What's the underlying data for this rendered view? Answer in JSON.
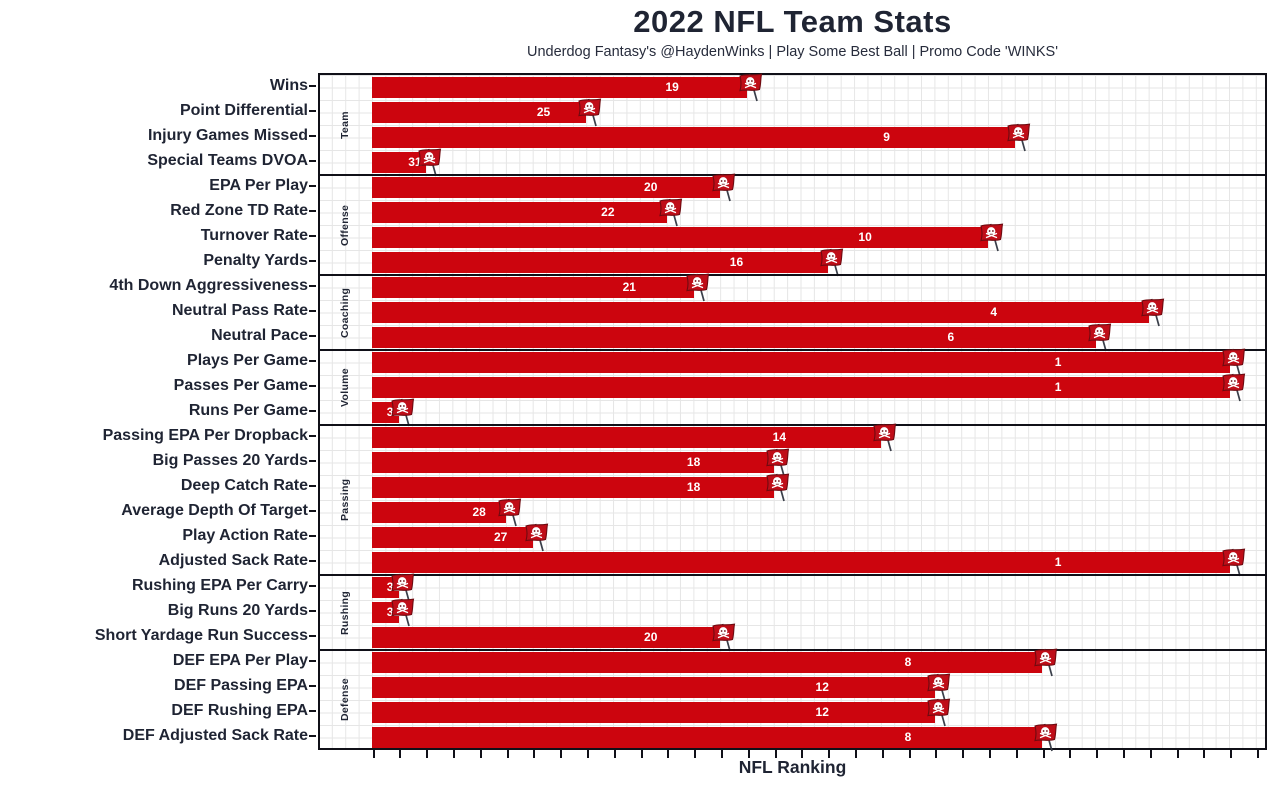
{
  "header": {
    "title": "2022 NFL Team Stats",
    "subtitle": "Underdog Fantasy's @HaydenWinks | Play Some Best Ball | Promo Code 'WINKS'"
  },
  "colors": {
    "bar_red": "#cc050e",
    "flag_fill": "#bf0d18",
    "flag_outline": "#6e0a10",
    "flag_skull": "#ffffff",
    "pole_gray": "#3a3f4a",
    "axis_ink": "#101018",
    "text_ink": "#1f2433",
    "bar_value_text": "#ffffff",
    "grid": "#e6e6e6"
  },
  "chart_data": {
    "type": "bar",
    "orientation": "horizontal",
    "title": "2022 NFL Team Stats",
    "subtitle": "Underdog Fantasy's @HaydenWinks | Play Some Best Ball | Promo Code 'WINKS'",
    "xlabel": "NFL Ranking",
    "ylabel": "",
    "value_semantics": "NFL rank out of 32; bar length = 33 - rank (rank 1 = longest bar)",
    "xlim_units": [
      0,
      33.5
    ],
    "grid": true,
    "legend": "none",
    "bar_end_marker": "tampa-bay-buccaneers-flag",
    "groups": [
      {
        "label": "Team",
        "stats": [
          {
            "label": "Wins",
            "rank": 19
          },
          {
            "label": "Point Differential",
            "rank": 25
          },
          {
            "label": "Injury Games Missed",
            "rank": 9
          },
          {
            "label": "Special Teams DVOA",
            "rank": 31
          }
        ]
      },
      {
        "label": "Offense",
        "stats": [
          {
            "label": "EPA Per Play",
            "rank": 20
          },
          {
            "label": "Red Zone TD Rate",
            "rank": 22
          },
          {
            "label": "Turnover Rate",
            "rank": 10
          },
          {
            "label": "Penalty Yards",
            "rank": 16
          }
        ]
      },
      {
        "label": "Coaching",
        "stats": [
          {
            "label": "4th Down Aggressiveness",
            "rank": 21
          },
          {
            "label": "Neutral Pass Rate",
            "rank": 4
          },
          {
            "label": "Neutral Pace",
            "rank": 6
          }
        ]
      },
      {
        "label": "Volume",
        "stats": [
          {
            "label": "Plays Per Game",
            "rank": 1
          },
          {
            "label": "Passes Per Game",
            "rank": 1
          },
          {
            "label": "Runs Per Game",
            "rank": 32
          }
        ]
      },
      {
        "label": "Passing",
        "stats": [
          {
            "label": "Passing EPA Per Dropback",
            "rank": 14
          },
          {
            "label": "Big Passes 20 Yards",
            "rank": 18
          },
          {
            "label": "Deep Catch Rate",
            "rank": 18
          },
          {
            "label": "Average Depth Of Target",
            "rank": 28
          },
          {
            "label": "Play Action Rate",
            "rank": 27
          },
          {
            "label": "Adjusted Sack Rate",
            "rank": 1
          }
        ]
      },
      {
        "label": "Rushing",
        "stats": [
          {
            "label": "Rushing EPA Per Carry",
            "rank": 32
          },
          {
            "label": "Big Runs 20 Yards",
            "rank": 32
          },
          {
            "label": "Short Yardage Run Success",
            "rank": 20
          }
        ]
      },
      {
        "label": "Defense",
        "stats": [
          {
            "label": "DEF EPA Per Play",
            "rank": 8
          },
          {
            "label": "DEF Passing EPA",
            "rank": 12
          },
          {
            "label": "DEF Rushing EPA",
            "rank": 12
          },
          {
            "label": "DEF Adjusted Sack Rate",
            "rank": 8
          }
        ]
      }
    ],
    "categories": [
      "Wins",
      "Point Differential",
      "Injury Games Missed",
      "Special Teams DVOA",
      "EPA Per Play",
      "Red Zone TD Rate",
      "Turnover Rate",
      "Penalty Yards",
      "4th Down Aggressiveness",
      "Neutral Pass Rate",
      "Neutral Pace",
      "Plays Per Game",
      "Passes Per Game",
      "Runs Per Game",
      "Passing EPA Per Dropback",
      "Big Passes 20 Yards",
      "Deep Catch Rate",
      "Average Depth Of Target",
      "Play Action Rate",
      "Adjusted Sack Rate",
      "Rushing EPA Per Carry",
      "Big Runs 20 Yards",
      "Short Yardage Run Success",
      "DEF EPA Per Play",
      "DEF Passing EPA",
      "DEF Rushing EPA",
      "DEF Adjusted Sack Rate"
    ],
    "values": [
      19,
      25,
      9,
      31,
      20,
      22,
      10,
      16,
      21,
      4,
      6,
      1,
      1,
      32,
      14,
      18,
      18,
      28,
      27,
      1,
      32,
      32,
      20,
      8,
      12,
      12,
      8
    ]
  }
}
